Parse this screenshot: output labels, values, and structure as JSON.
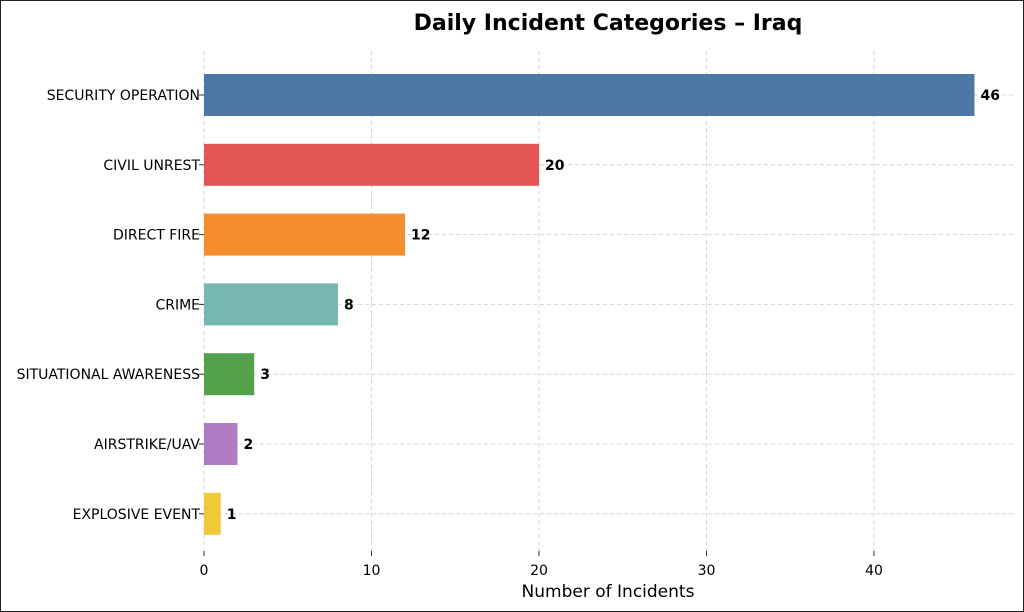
{
  "chart_data": {
    "type": "bar",
    "orientation": "horizontal",
    "title": "Daily Incident Categories – Iraq",
    "xlabel": "Number of Incidents",
    "ylabel": "",
    "xlim": [
      0,
      48.3
    ],
    "xticks": [
      0,
      10,
      20,
      30,
      40
    ],
    "grid": true,
    "categories": [
      "SECURITY OPERATION",
      "CIVIL UNREST",
      "DIRECT FIRE",
      "CRIME",
      "SITUATIONAL AWARENESS",
      "AIRSTRIKE/UAV",
      "EXPLOSIVE EVENT"
    ],
    "values": [
      46,
      20,
      12,
      8,
      3,
      2,
      1
    ],
    "colors": [
      "#4c78a8",
      "#e45756",
      "#f58f2e",
      "#76b7b2",
      "#54a24b",
      "#b07cc6",
      "#eeca3b"
    ]
  }
}
